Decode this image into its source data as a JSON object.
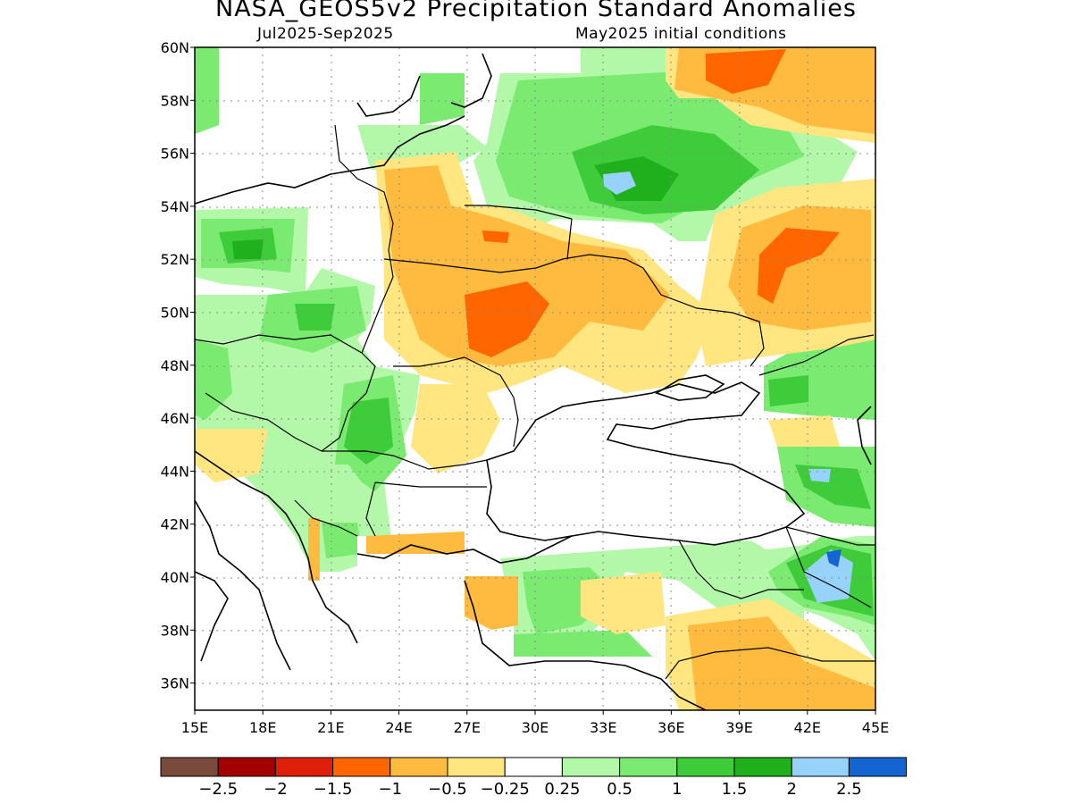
{
  "header": {
    "title": "NASA_GEOS5v2 Precipitation Standard Anomalies",
    "period": "Jul2025-Sep2025",
    "initial_conditions": "May2025 initial conditions"
  },
  "axes": {
    "lat_labels": [
      "60N",
      "58N",
      "56N",
      "54N",
      "52N",
      "50N",
      "48N",
      "46N",
      "44N",
      "42N",
      "40N",
      "38N",
      "36N"
    ],
    "lon_labels": [
      "15E",
      "18E",
      "21E",
      "24E",
      "27E",
      "30E",
      "33E",
      "36E",
      "39E",
      "42E",
      "45E"
    ]
  },
  "legend": {
    "colors": [
      "#7a4a3d",
      "#a30000",
      "#de1f0a",
      "#ff6600",
      "#ffbb40",
      "#ffe680",
      "#ffffff",
      "#b3f7a8",
      "#7aeb70",
      "#3ecc3a",
      "#1fb01c",
      "#96d2fa",
      "#1464d2"
    ],
    "labels": [
      "-2.5",
      "-2",
      "-1.5",
      "-1",
      "-0.5",
      "-0.25",
      "0.25",
      "0.5",
      "1",
      "1.5",
      "2",
      "2.5"
    ]
  },
  "map_data": {
    "lon_range": [
      15,
      45
    ],
    "lat_range": [
      35,
      60
    ],
    "grid_lines": "dotted gray every 3° lon / 2° lat"
  }
}
